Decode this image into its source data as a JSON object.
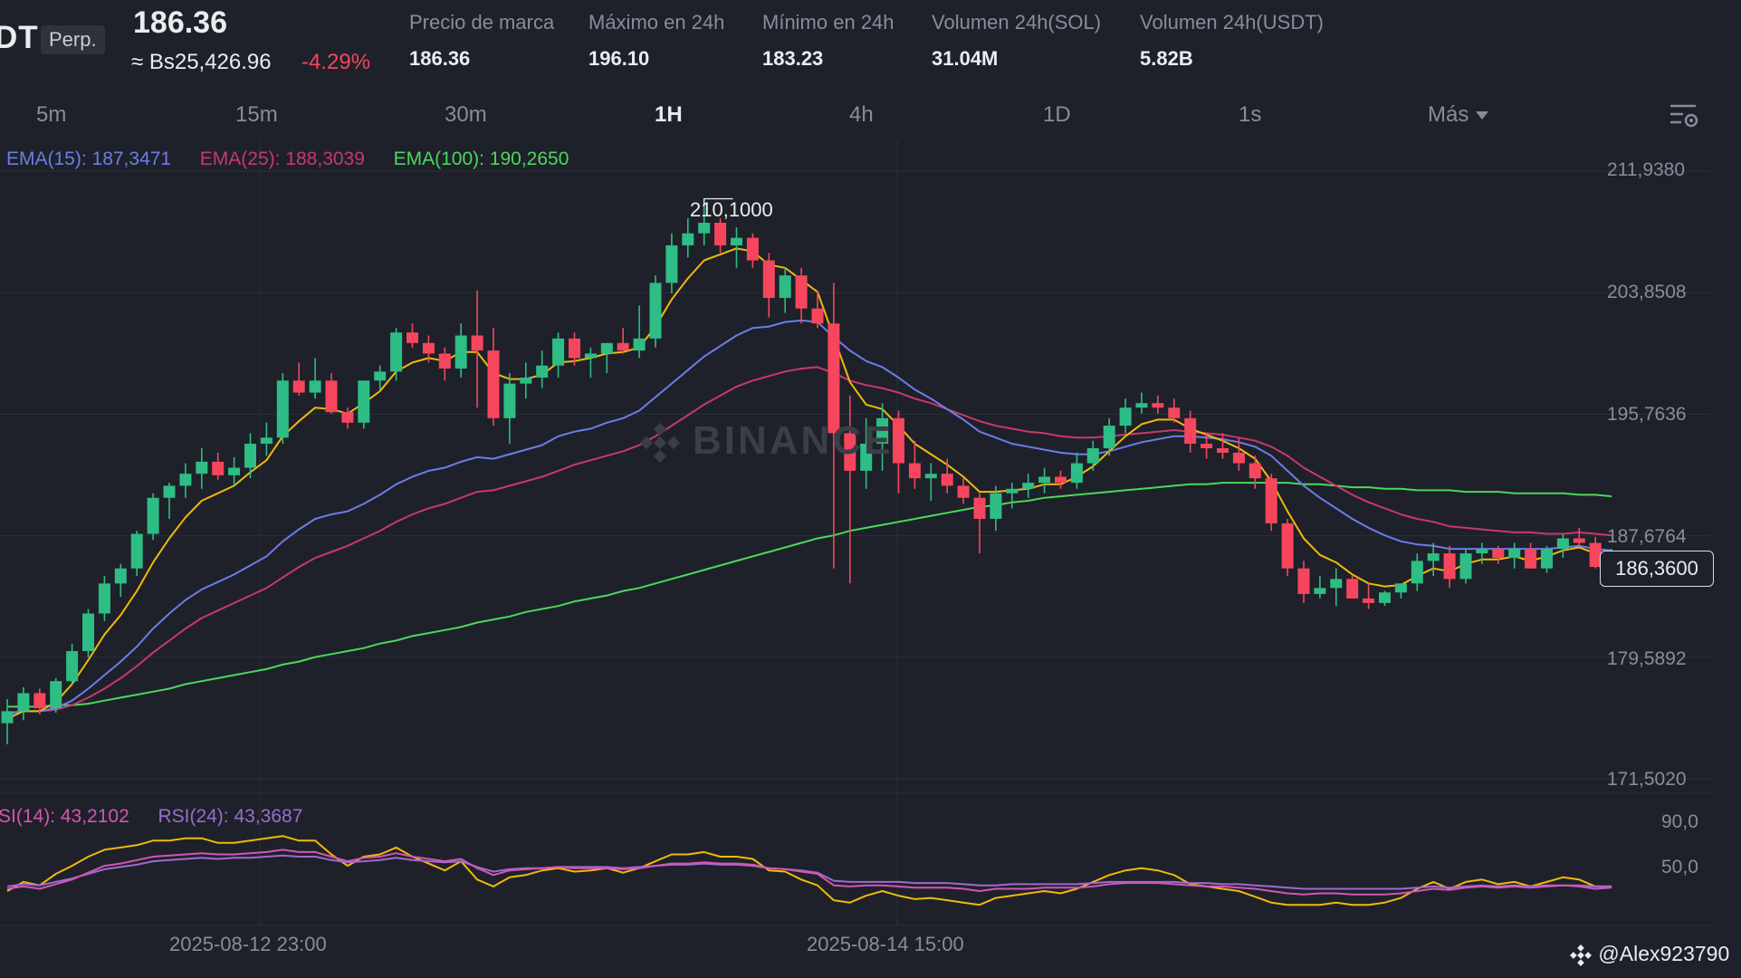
{
  "header": {
    "symbol": "DT",
    "perp_badge": "Perp.",
    "last_price": "186.36",
    "fiat_price": "≈ Bs25,426.96",
    "change_pct": "-4.29%",
    "stats": [
      {
        "label": "Precio de marca",
        "value": "186.36"
      },
      {
        "label": "Máximo en 24h",
        "value": "196.10"
      },
      {
        "label": "Mínimo en 24h",
        "value": "183.23"
      },
      {
        "label": "Volumen 24h(SOL)",
        "value": "31.04M"
      },
      {
        "label": "Volumen 24h(USDT)",
        "value": "5.82B"
      }
    ]
  },
  "intervals": {
    "tabs": [
      "5m",
      "15m",
      "30m",
      "1H",
      "4h",
      "1D",
      "1s"
    ],
    "active": "1H",
    "more_label": "Más"
  },
  "icons": {
    "settings": "chart-settings-icon",
    "watermark_logo": "binance-logo-icon",
    "footer_logo": "binance-logo-icon"
  },
  "colors": {
    "up": "#2ebd85",
    "down": "#f6465d",
    "ema15": "#6b7de8",
    "ema25": "#c8386e",
    "ema100": "#4bd75c",
    "ema_fast": "#f0b90b",
    "rsi14": "#d455b6",
    "rsi24": "#9b6bcf",
    "rsi_fast": "#f0b90b"
  },
  "chart": {
    "watermark": "BINANCE",
    "ema_legend": [
      {
        "text": "EMA(15): 187,3471",
        "color": "#6b7de8"
      },
      {
        "text": "EMA(25): 188,3039",
        "color": "#c8386e"
      },
      {
        "text": "EMA(100): 190,2650",
        "color": "#4bd75c"
      }
    ],
    "rsi_legend": [
      {
        "text": "SI(14): 43,2102",
        "color": "#d455b6"
      },
      {
        "text": "RSI(24): 43,3687",
        "color": "#9b6bcf"
      }
    ],
    "price_tag": "186,3600",
    "peak_label": "210,1000",
    "footer_user": "@Alex923790"
  },
  "chart_data": {
    "type": "candlestick",
    "y_axis_ticks": [
      "211,9380",
      "203,8508",
      "195,7636",
      "187,6764",
      "179,5892",
      "171,5020"
    ],
    "y_range": [
      171.502,
      211.938
    ],
    "rsi_axis_ticks": [
      "90,0",
      "50,0"
    ],
    "x_axis_labels": [
      "2025-08-12 23:00",
      "2025-08-14 15:00"
    ],
    "last_price": 186.36,
    "peak_high": 210.1,
    "candles": [
      [
        175.2,
        176.8,
        173.8,
        176.0
      ],
      [
        176.0,
        177.6,
        175.4,
        177.2
      ],
      [
        177.2,
        177.5,
        175.8,
        176.2
      ],
      [
        176.2,
        178.2,
        175.9,
        178.0
      ],
      [
        178.0,
        180.5,
        177.8,
        180.0
      ],
      [
        180.0,
        182.8,
        179.6,
        182.5
      ],
      [
        182.5,
        185.0,
        182.0,
        184.5
      ],
      [
        184.5,
        185.8,
        183.6,
        185.5
      ],
      [
        185.5,
        188.0,
        185.0,
        187.8
      ],
      [
        187.8,
        190.5,
        187.4,
        190.2
      ],
      [
        190.2,
        191.2,
        188.8,
        191.0
      ],
      [
        191.0,
        192.5,
        190.2,
        191.8
      ],
      [
        191.8,
        193.5,
        190.8,
        192.6
      ],
      [
        192.6,
        193.2,
        191.4,
        191.7
      ],
      [
        191.7,
        192.9,
        191.0,
        192.2
      ],
      [
        192.2,
        194.5,
        191.5,
        193.8
      ],
      [
        193.8,
        195.2,
        193.0,
        194.2
      ],
      [
        194.2,
        198.5,
        193.8,
        198.0
      ],
      [
        198.0,
        199.2,
        197.0,
        197.2
      ],
      [
        197.2,
        199.5,
        196.8,
        198.0
      ],
      [
        198.0,
        198.5,
        195.8,
        195.9
      ],
      [
        195.9,
        196.2,
        194.8,
        195.2
      ],
      [
        195.2,
        198.0,
        194.8,
        198.0
      ],
      [
        198.0,
        199.0,
        197.4,
        198.6
      ],
      [
        198.6,
        201.5,
        198.0,
        201.2
      ],
      [
        201.2,
        201.8,
        200.2,
        200.5
      ],
      [
        200.5,
        201.0,
        199.2,
        199.8
      ],
      [
        199.8,
        200.2,
        198.0,
        198.8
      ],
      [
        198.8,
        201.8,
        198.2,
        201.0
      ],
      [
        201.0,
        204.0,
        196.2,
        200.0
      ],
      [
        200.0,
        201.5,
        195.0,
        195.5
      ],
      [
        195.5,
        198.5,
        193.8,
        197.8
      ],
      [
        197.8,
        199.2,
        196.8,
        198.2
      ],
      [
        198.2,
        200.0,
        197.5,
        199.0
      ],
      [
        199.0,
        201.2,
        198.2,
        200.8
      ],
      [
        200.8,
        201.2,
        199.0,
        199.5
      ],
      [
        199.5,
        200.2,
        198.2,
        199.8
      ],
      [
        199.8,
        200.5,
        198.5,
        200.5
      ],
      [
        200.5,
        201.5,
        199.8,
        200.0
      ],
      [
        200.0,
        203.0,
        199.5,
        200.8
      ],
      [
        200.8,
        205.0,
        200.2,
        204.5
      ],
      [
        204.5,
        207.8,
        203.8,
        207.0
      ],
      [
        207.0,
        208.8,
        206.2,
        207.8
      ],
      [
        207.8,
        210.1,
        207.0,
        208.5
      ],
      [
        208.5,
        208.8,
        206.5,
        207.0
      ],
      [
        207.0,
        208.2,
        205.5,
        207.5
      ],
      [
        207.5,
        207.8,
        205.5,
        206.0
      ],
      [
        206.0,
        206.5,
        202.2,
        203.5
      ],
      [
        203.5,
        205.5,
        202.5,
        205.0
      ],
      [
        205.0,
        205.5,
        201.8,
        202.8
      ],
      [
        202.8,
        204.0,
        201.5,
        201.8
      ],
      [
        201.8,
        204.5,
        185.5,
        194.5
      ],
      [
        194.5,
        197.0,
        184.5,
        192.0
      ],
      [
        192.0,
        195.5,
        190.8,
        193.8
      ],
      [
        193.8,
        196.5,
        192.0,
        195.5
      ],
      [
        195.5,
        196.0,
        190.5,
        192.5
      ],
      [
        192.5,
        194.0,
        190.8,
        191.5
      ],
      [
        191.5,
        192.5,
        190.0,
        191.8
      ],
      [
        191.8,
        192.8,
        190.5,
        191.0
      ],
      [
        191.0,
        191.5,
        189.8,
        190.2
      ],
      [
        190.2,
        190.5,
        186.5,
        188.8
      ],
      [
        188.8,
        191.0,
        188.0,
        190.5
      ],
      [
        190.5,
        191.2,
        189.5,
        190.8
      ],
      [
        190.8,
        191.8,
        190.2,
        191.2
      ],
      [
        191.2,
        192.2,
        190.5,
        191.6
      ],
      [
        191.6,
        192.0,
        190.8,
        191.2
      ],
      [
        191.2,
        193.2,
        190.8,
        192.5
      ],
      [
        192.5,
        194.0,
        192.0,
        193.5
      ],
      [
        193.5,
        195.5,
        193.0,
        195.0
      ],
      [
        195.0,
        196.8,
        194.5,
        196.2
      ],
      [
        196.2,
        197.2,
        195.8,
        196.5
      ],
      [
        196.5,
        197.0,
        195.8,
        196.2
      ],
      [
        196.2,
        196.8,
        195.2,
        195.5
      ],
      [
        195.5,
        196.0,
        193.2,
        193.8
      ],
      [
        193.8,
        194.5,
        192.8,
        193.5
      ],
      [
        193.5,
        194.5,
        192.8,
        193.2
      ],
      [
        193.2,
        194.2,
        192.0,
        192.5
      ],
      [
        192.5,
        193.0,
        190.8,
        191.5
      ],
      [
        191.5,
        191.8,
        188.0,
        188.5
      ],
      [
        188.5,
        188.8,
        185.0,
        185.5
      ],
      [
        185.5,
        186.0,
        183.2,
        183.8
      ],
      [
        183.8,
        185.0,
        183.5,
        184.2
      ],
      [
        184.2,
        185.5,
        183.0,
        184.8
      ],
      [
        184.8,
        185.0,
        183.5,
        183.5
      ],
      [
        183.5,
        184.5,
        182.8,
        183.2
      ],
      [
        183.2,
        184.0,
        183.0,
        183.9
      ],
      [
        183.9,
        184.5,
        183.5,
        184.5
      ],
      [
        184.5,
        186.5,
        184.0,
        186.0
      ],
      [
        186.0,
        187.2,
        185.0,
        186.5
      ],
      [
        186.5,
        187.0,
        184.2,
        184.8
      ],
      [
        184.8,
        186.8,
        184.5,
        186.5
      ],
      [
        186.5,
        187.2,
        185.8,
        186.8
      ],
      [
        186.8,
        187.0,
        185.8,
        186.2
      ],
      [
        186.2,
        187.2,
        185.5,
        186.8
      ],
      [
        186.8,
        187.2,
        185.5,
        185.5
      ],
      [
        185.5,
        187.0,
        185.2,
        186.8
      ],
      [
        186.8,
        187.8,
        186.2,
        187.5
      ],
      [
        187.5,
        188.2,
        187.0,
        187.2
      ],
      [
        187.2,
        187.6,
        185.5,
        185.6
      ],
      [
        185.6,
        186.8,
        185.0,
        186.4
      ]
    ],
    "ema15": [
      175.8,
      176.0,
      176.0,
      176.2,
      176.7,
      177.5,
      178.4,
      179.3,
      180.3,
      181.5,
      182.5,
      183.4,
      184.1,
      184.6,
      185.1,
      185.7,
      186.3,
      187.3,
      188.1,
      188.8,
      189.1,
      189.3,
      189.8,
      190.4,
      191.1,
      191.6,
      192.0,
      192.2,
      192.6,
      192.9,
      192.8,
      193.1,
      193.4,
      193.7,
      194.3,
      194.6,
      194.8,
      195.2,
      195.5,
      196.0,
      196.9,
      197.8,
      198.7,
      199.6,
      200.3,
      201.0,
      201.5,
      201.6,
      201.9,
      202.0,
      201.9,
      200.9,
      200.0,
      199.3,
      198.9,
      198.2,
      197.4,
      196.8,
      196.1,
      195.4,
      194.6,
      194.2,
      193.8,
      193.6,
      193.4,
      193.2,
      193.1,
      193.1,
      193.3,
      193.6,
      193.9,
      194.1,
      194.3,
      194.3,
      194.2,
      194.1,
      193.9,
      193.6,
      193.0,
      192.0,
      191.0,
      190.2,
      189.5,
      188.8,
      188.2,
      187.7,
      187.3,
      187.1,
      187.0,
      186.8,
      186.8,
      186.8,
      186.8,
      186.8,
      186.8,
      186.8,
      186.9,
      187.0,
      186.8,
      186.7
    ],
    "ema25": [
      175.9,
      176.0,
      176.0,
      176.1,
      176.4,
      176.9,
      177.5,
      178.2,
      179.0,
      179.9,
      180.7,
      181.5,
      182.2,
      182.7,
      183.2,
      183.7,
      184.2,
      184.9,
      185.6,
      186.2,
      186.6,
      187.0,
      187.5,
      188.0,
      188.6,
      189.1,
      189.5,
      189.8,
      190.2,
      190.6,
      190.7,
      191.0,
      191.3,
      191.6,
      192.0,
      192.4,
      192.7,
      193.0,
      193.3,
      193.7,
      194.3,
      195.0,
      195.7,
      196.4,
      197.0,
      197.6,
      198.0,
      198.3,
      198.6,
      198.8,
      198.9,
      198.5,
      198.0,
      197.7,
      197.5,
      197.2,
      196.8,
      196.5,
      196.1,
      195.7,
      195.3,
      195.0,
      194.8,
      194.6,
      194.5,
      194.3,
      194.2,
      194.2,
      194.3,
      194.4,
      194.5,
      194.6,
      194.7,
      194.6,
      194.5,
      194.4,
      194.2,
      194.0,
      193.6,
      193.0,
      192.2,
      191.6,
      191.0,
      190.4,
      189.9,
      189.5,
      189.1,
      188.8,
      188.6,
      188.3,
      188.2,
      188.1,
      188.0,
      187.9,
      187.9,
      187.8,
      187.8,
      187.9,
      187.8,
      187.7
    ],
    "ema100": [
      176.3,
      176.3,
      176.3,
      176.4,
      176.4,
      176.5,
      176.7,
      176.9,
      177.1,
      177.3,
      177.5,
      177.8,
      178.0,
      178.2,
      178.4,
      178.6,
      178.8,
      179.1,
      179.3,
      179.6,
      179.8,
      180.0,
      180.2,
      180.5,
      180.7,
      181.0,
      181.2,
      181.4,
      181.6,
      181.9,
      182.1,
      182.3,
      182.6,
      182.8,
      183.0,
      183.3,
      183.5,
      183.7,
      184.0,
      184.2,
      184.5,
      184.8,
      185.1,
      185.4,
      185.7,
      186.0,
      186.3,
      186.6,
      186.9,
      187.2,
      187.5,
      187.7,
      188.0,
      188.2,
      188.4,
      188.6,
      188.8,
      189.0,
      189.2,
      189.4,
      189.6,
      189.7,
      189.9,
      190.0,
      190.2,
      190.3,
      190.4,
      190.5,
      190.6,
      190.7,
      190.8,
      190.9,
      191.0,
      191.1,
      191.1,
      191.2,
      191.2,
      191.2,
      191.2,
      191.2,
      191.1,
      191.1,
      191.0,
      190.9,
      190.9,
      190.8,
      190.8,
      190.7,
      190.7,
      190.7,
      190.6,
      190.6,
      190.6,
      190.5,
      190.5,
      190.5,
      190.5,
      190.4,
      190.4,
      190.3
    ],
    "ema_fast": [
      175.5,
      176.0,
      176.0,
      176.6,
      177.8,
      179.4,
      181.1,
      182.4,
      184.0,
      185.9,
      187.5,
      188.9,
      190.0,
      190.5,
      191.0,
      191.9,
      192.7,
      194.3,
      195.3,
      196.2,
      196.1,
      195.8,
      196.5,
      197.3,
      198.6,
      199.2,
      199.5,
      199.3,
      199.9,
      199.9,
      198.5,
      198.1,
      198.1,
      198.4,
      199.2,
      199.3,
      199.5,
      199.8,
      199.9,
      200.2,
      201.6,
      203.4,
      204.8,
      206.0,
      206.4,
      206.8,
      206.6,
      205.7,
      205.5,
      204.7,
      203.9,
      200.9,
      197.9,
      196.4,
      196.1,
      195.0,
      193.8,
      193.1,
      192.4,
      191.6,
      190.6,
      190.6,
      190.7,
      190.8,
      191.1,
      191.1,
      191.6,
      192.3,
      193.3,
      194.3,
      195.1,
      195.4,
      195.4,
      194.8,
      194.4,
      194.0,
      193.5,
      192.8,
      191.3,
      189.3,
      187.5,
      186.4,
      185.9,
      185.1,
      184.5,
      184.3,
      184.4,
      185.0,
      185.5,
      185.3,
      185.8,
      186.1,
      186.1,
      186.3,
      186.0,
      186.3,
      186.7,
      186.9,
      186.5,
      186.4
    ],
    "rsi14": [
      42,
      44,
      42,
      46,
      50,
      56,
      62,
      64,
      67,
      70,
      71,
      72,
      73,
      72,
      72,
      73,
      74,
      76,
      74,
      74,
      70,
      66,
      69,
      70,
      73,
      70,
      68,
      66,
      68,
      60,
      54,
      58,
      59,
      60,
      61,
      60,
      60,
      60,
      59,
      60,
      62,
      64,
      64,
      65,
      64,
      64,
      63,
      60,
      59,
      57,
      55,
      45,
      44,
      45,
      45,
      44,
      43,
      43,
      43,
      42,
      40,
      42,
      42,
      42,
      43,
      43,
      43,
      44,
      46,
      47,
      47,
      47,
      46,
      45,
      44,
      44,
      43,
      42,
      40,
      38,
      37,
      38,
      38,
      37,
      37,
      37,
      38,
      40,
      42,
      41,
      43,
      44,
      43,
      44,
      43,
      44,
      45,
      44,
      42,
      43
    ],
    "rsi24": [
      44,
      46,
      45,
      48,
      51,
      55,
      59,
      61,
      63,
      66,
      67,
      68,
      69,
      68,
      69,
      69,
      70,
      71,
      70,
      70,
      67,
      65,
      66,
      67,
      69,
      67,
      66,
      65,
      66,
      61,
      57,
      59,
      60,
      60,
      61,
      61,
      61,
      61,
      60,
      61,
      62,
      63,
      63,
      64,
      63,
      63,
      62,
      60,
      59,
      58,
      56,
      49,
      48,
      48,
      48,
      48,
      47,
      47,
      47,
      46,
      45,
      45,
      46,
      46,
      46,
      46,
      46,
      47,
      48,
      48,
      48,
      48,
      48,
      47,
      47,
      46,
      46,
      45,
      44,
      43,
      42,
      42,
      42,
      42,
      42,
      42,
      42,
      43,
      44,
      43,
      44,
      45,
      44,
      45,
      44,
      45,
      45,
      45,
      44,
      44
    ],
    "rsi_fast": [
      40,
      48,
      45,
      55,
      62,
      70,
      76,
      78,
      80,
      84,
      84,
      86,
      86,
      82,
      82,
      84,
      86,
      88,
      84,
      84,
      72,
      62,
      70,
      72,
      78,
      70,
      64,
      58,
      66,
      50,
      44,
      52,
      54,
      58,
      60,
      57,
      58,
      60,
      56,
      60,
      66,
      72,
      72,
      74,
      70,
      70,
      68,
      58,
      57,
      50,
      45,
      32,
      30,
      36,
      40,
      36,
      33,
      34,
      32,
      30,
      28,
      34,
      36,
      38,
      40,
      38,
      42,
      48,
      54,
      58,
      60,
      58,
      54,
      46,
      44,
      42,
      40,
      35,
      30,
      28,
      28,
      28,
      30,
      28,
      28,
      30,
      34,
      42,
      48,
      42,
      48,
      50,
      46,
      48,
      44,
      48,
      52,
      50,
      44,
      44
    ]
  }
}
